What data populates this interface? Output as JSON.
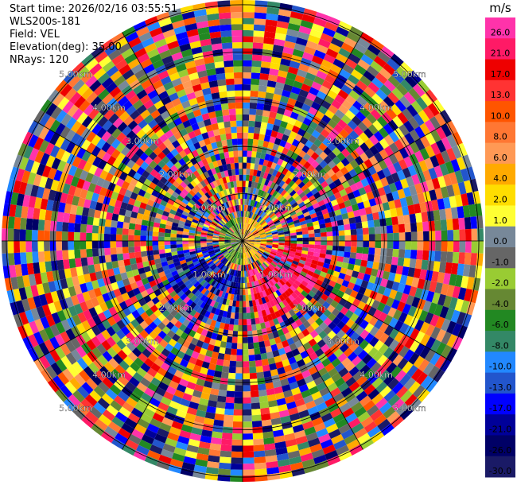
{
  "info": {
    "start_time": "Start time: 2026/02/16 03:55:51",
    "instrument": "WLS200s-181",
    "field": "Field: VEL",
    "elevation": "Elevation(deg): 35.00",
    "nrays": "NRays: 120"
  },
  "chart_data": {
    "type": "heatmap",
    "projection": "polar-ppi",
    "field": "VEL",
    "elevation_deg": 35.0,
    "nrays": 120,
    "range_rings_km": [
      "1.00km",
      "2.00km",
      "3.00km",
      "4.00km",
      "5.00km"
    ],
    "ring_values_km": [
      1,
      2,
      3,
      4,
      5
    ],
    "max_range_km": 5.1,
    "colorbar": {
      "unit": "m/s",
      "ticks": [
        "26.0",
        "21.0",
        "17.0",
        "13.0",
        "10.0",
        "8.0",
        "6.0",
        "4.0",
        "2.0",
        "1.0",
        "0.0",
        "-1.0",
        "-2.0",
        "-4.0",
        "-6.0",
        "-8.0",
        "-10.0",
        "-13.0",
        "-17.0",
        "-21.0",
        "-26.0",
        "-30.0"
      ],
      "colors": [
        "#ff33aa",
        "#ff1a66",
        "#ee0000",
        "#ff3333",
        "#ff5500",
        "#ff7733",
        "#ff9955",
        "#ffaa00",
        "#ffdd00",
        "#ffff33",
        "#778899",
        "#666666",
        "#99cc33",
        "#668833",
        "#228822",
        "#338866",
        "#2288ff",
        "#2255cc",
        "#0000ff",
        "#000099",
        "#000066",
        "#1a1a66"
      ]
    }
  }
}
